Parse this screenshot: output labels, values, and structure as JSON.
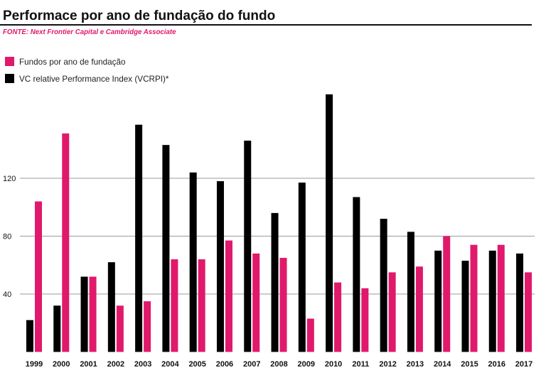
{
  "chart_data": {
    "type": "bar",
    "title": "Performace por ano de fundação do fundo",
    "source": "FONTE: Next Frontier Capital e Cambridge Associate",
    "categories": [
      "1999",
      "2000",
      "2001",
      "2002",
      "2003",
      "2004",
      "2005",
      "2006",
      "2007",
      "2008",
      "2009",
      "2010",
      "2011",
      "2012",
      "2013",
      "2014",
      "2015",
      "2016",
      "2017"
    ],
    "series": [
      {
        "name": "VC relative Performance Index (VCRPI)*",
        "color": "#000000",
        "values": [
          22,
          32,
          52,
          62,
          157,
          143,
          124,
          118,
          146,
          96,
          117,
          178,
          107,
          92,
          83,
          70,
          63,
          70,
          68
        ]
      },
      {
        "name": "Fundos por ano de fundação",
        "color": "#e0196b",
        "values": [
          104,
          151,
          52,
          32,
          35,
          64,
          64,
          77,
          68,
          65,
          23,
          48,
          44,
          55,
          59,
          80,
          74,
          74,
          55
        ]
      }
    ],
    "yticks": [
      40,
      80,
      120
    ],
    "ylim": [
      0,
      180
    ],
    "grid": true
  }
}
